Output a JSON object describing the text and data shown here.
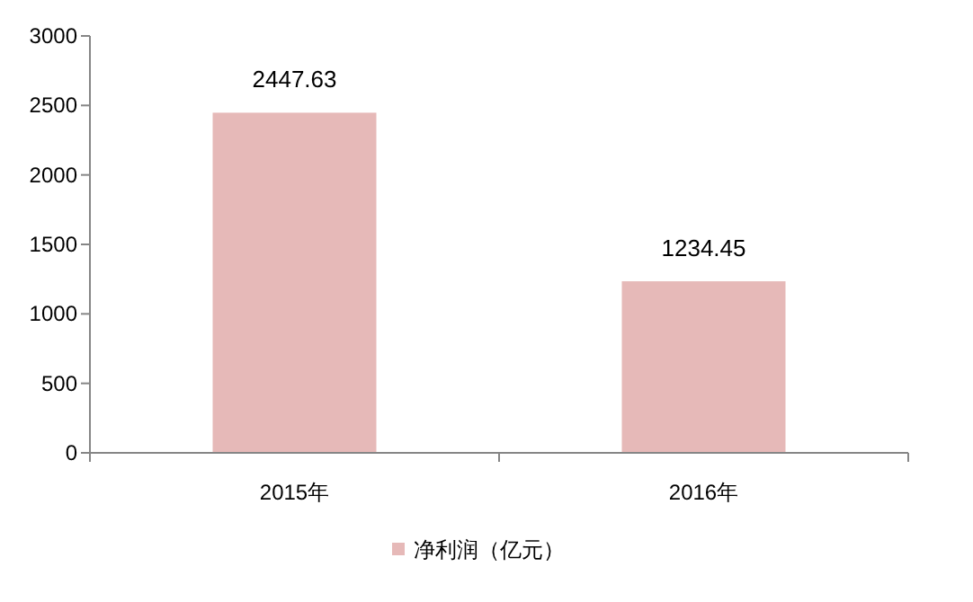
{
  "chart_data": {
    "type": "bar",
    "categories": [
      "2015年",
      "2016年"
    ],
    "series": [
      {
        "name": "净利润（亿元）",
        "color": "#e6b9b8",
        "values": [
          2447.63,
          1234.45
        ]
      }
    ],
    "ylim": [
      0,
      3000
    ],
    "yticks": [
      0,
      500,
      1000,
      1500,
      2000,
      2500,
      3000
    ],
    "grid": false,
    "legend": "bottom",
    "data_labels": true
  }
}
